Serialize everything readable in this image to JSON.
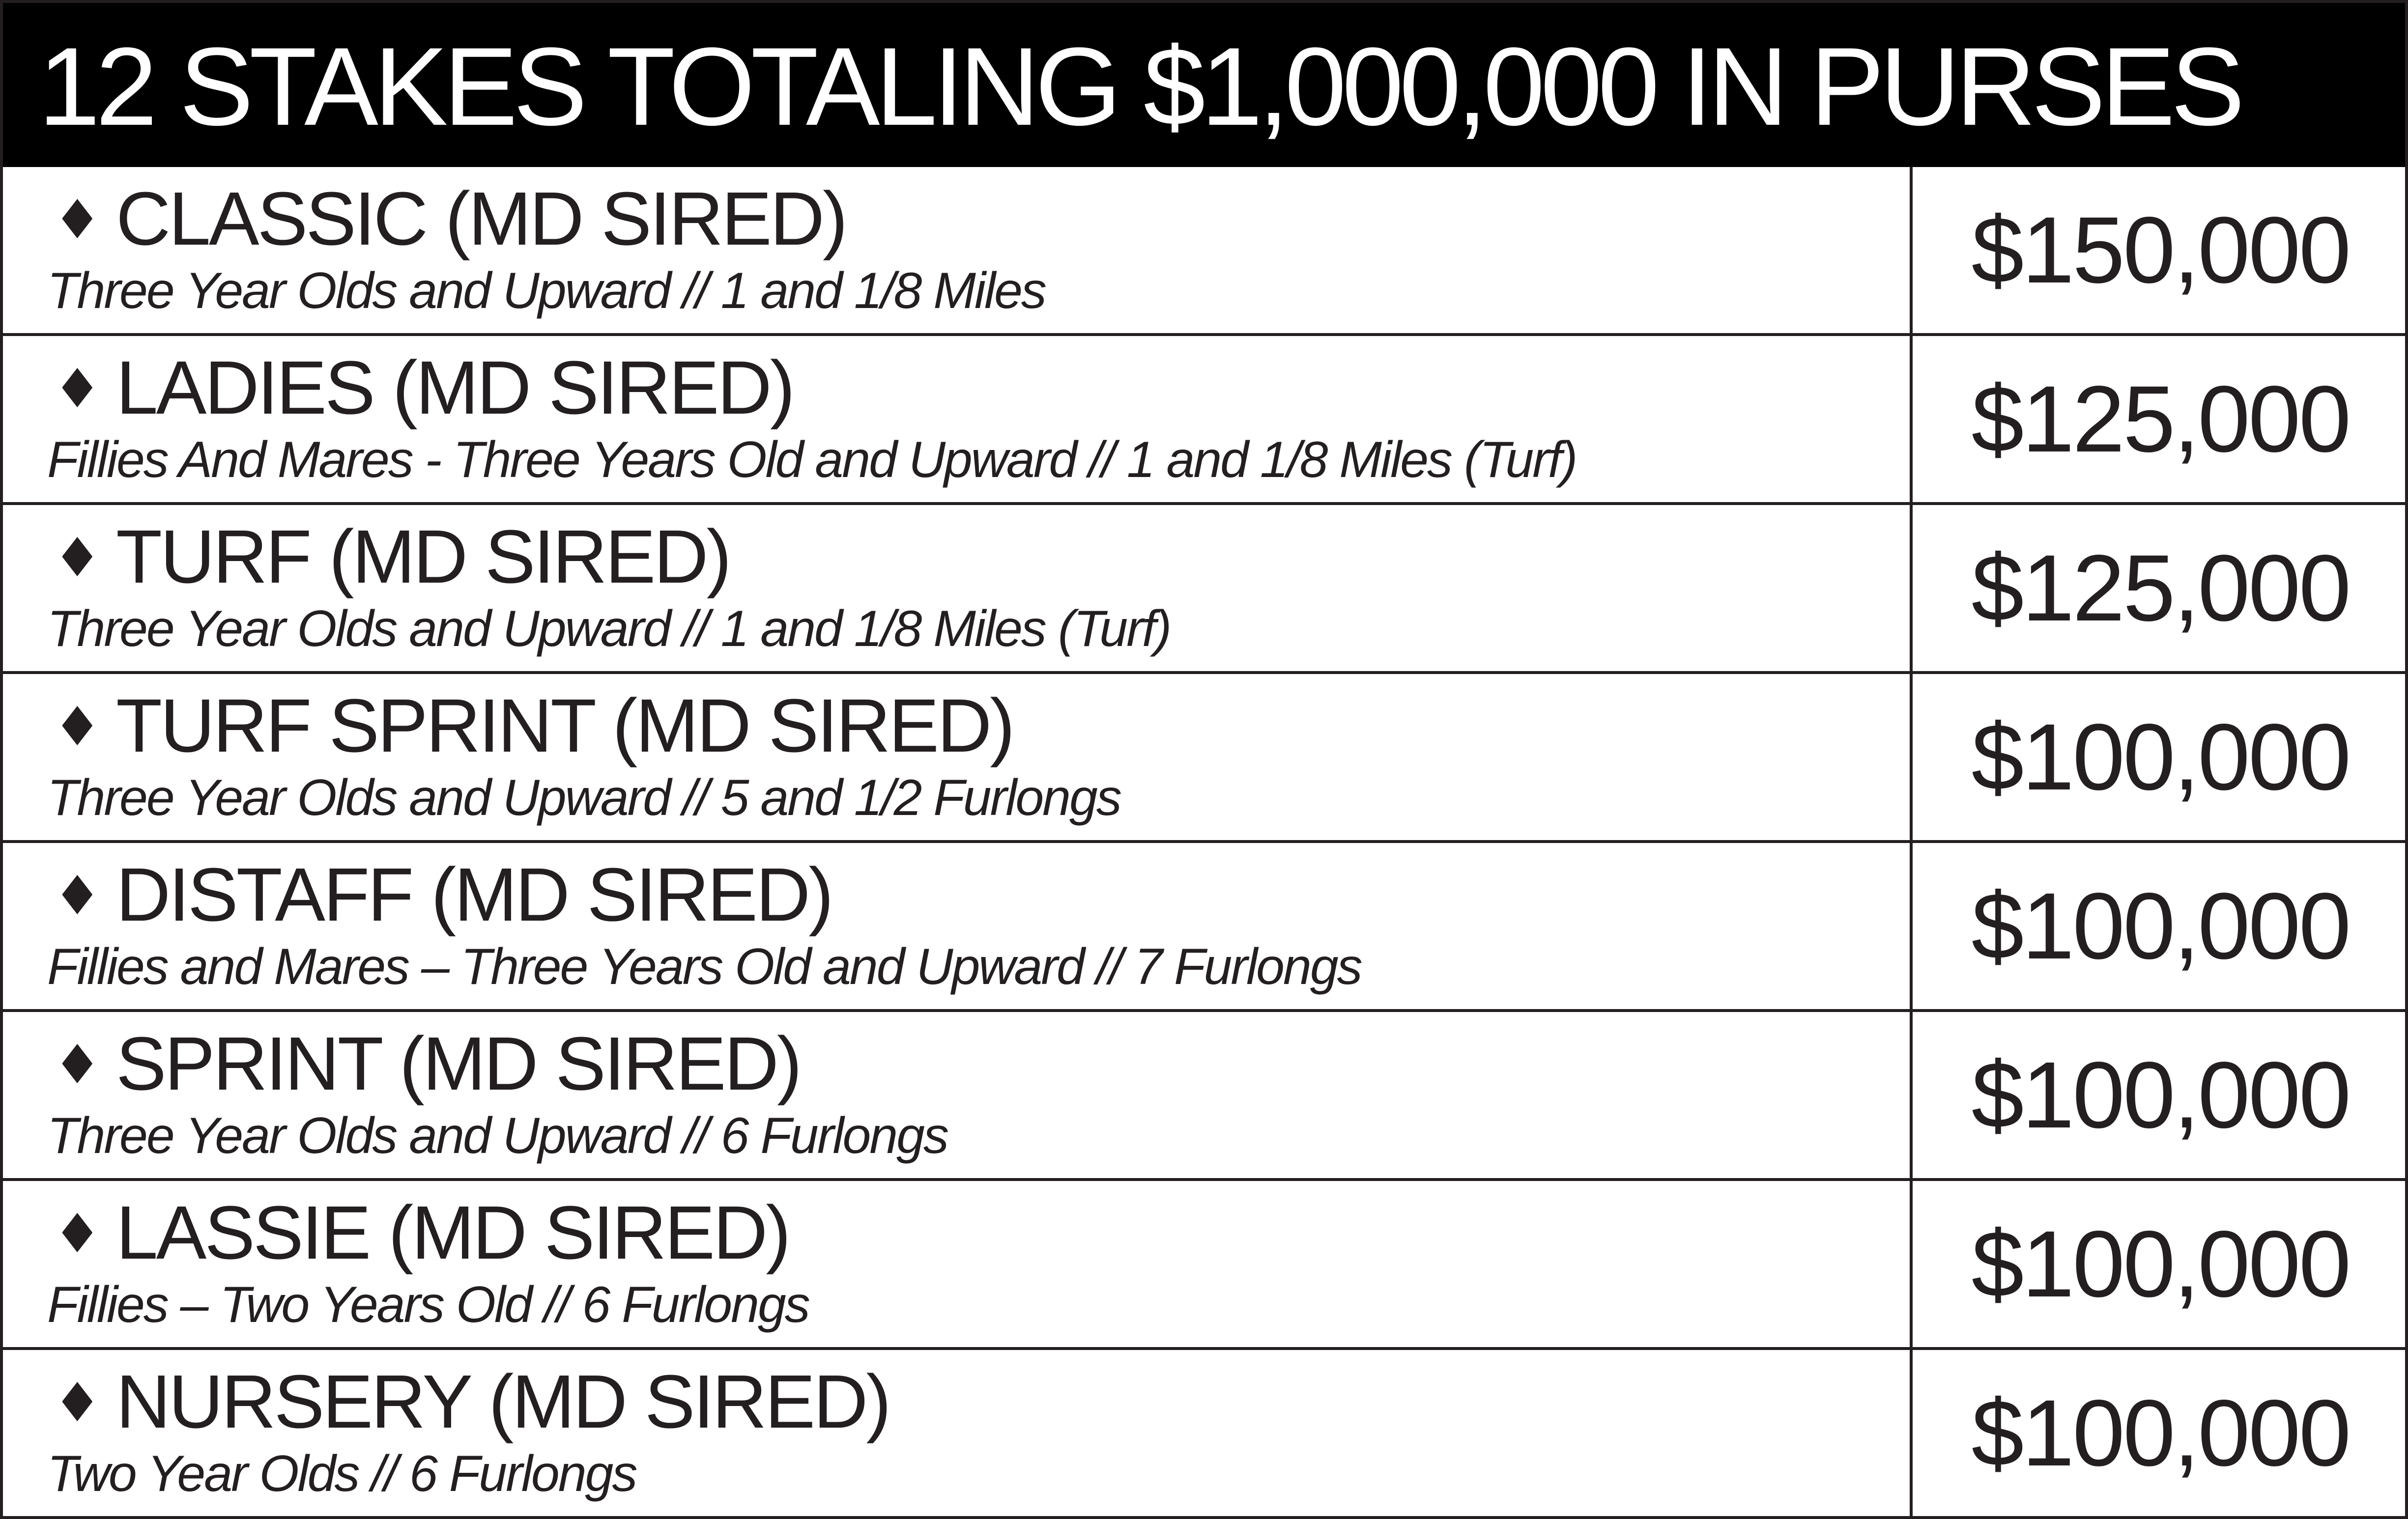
{
  "header": {
    "title": "12 STAKES TOTALING $1,000,000 IN PURSES"
  },
  "bullet_icon": "diamond-icon",
  "colors": {
    "header_background": "#000000",
    "header_text": "#ffffff",
    "text": "#231f20",
    "background": "#ffffff"
  },
  "stakes": [
    {
      "bullet": "♦",
      "name": "CLASSIC (MD SIRED)",
      "detail": "Three Year Olds and Upward // 1 and 1/8 Miles",
      "purse": "$150,000"
    },
    {
      "bullet": "♦",
      "name": "LADIES (MD SIRED)",
      "detail": "Fillies And Mares - Three Years Old and Upward // 1 and 1/8 Miles (Turf)",
      "purse": "$125,000"
    },
    {
      "bullet": "♦",
      "name": "TURF (MD SIRED)",
      "detail": "Three Year Olds and Upward // 1 and 1/8 Miles (Turf)",
      "purse": "$125,000"
    },
    {
      "bullet": "♦",
      "name": "TURF SPRINT (MD SIRED)",
      "detail": "Three Year Olds and Upward // 5 and 1/2 Furlongs",
      "purse": "$100,000"
    },
    {
      "bullet": "♦",
      "name": "DISTAFF (MD SIRED)",
      "detail": "Fillies and Mares – Three Years Old and Upward // 7 Furlongs",
      "purse": "$100,000"
    },
    {
      "bullet": "♦",
      "name": "SPRINT (MD SIRED)",
      "detail": "Three Year Olds and Upward // 6 Furlongs",
      "purse": "$100,000"
    },
    {
      "bullet": "♦",
      "name": "LASSIE (MD SIRED)",
      "detail": "Fillies – Two Years Old // 6 Furlongs",
      "purse": "$100,000"
    },
    {
      "bullet": "♦",
      "name": "NURSERY (MD SIRED)",
      "detail": "Two Year Olds // 6 Furlongs",
      "purse": "$100,000"
    }
  ]
}
